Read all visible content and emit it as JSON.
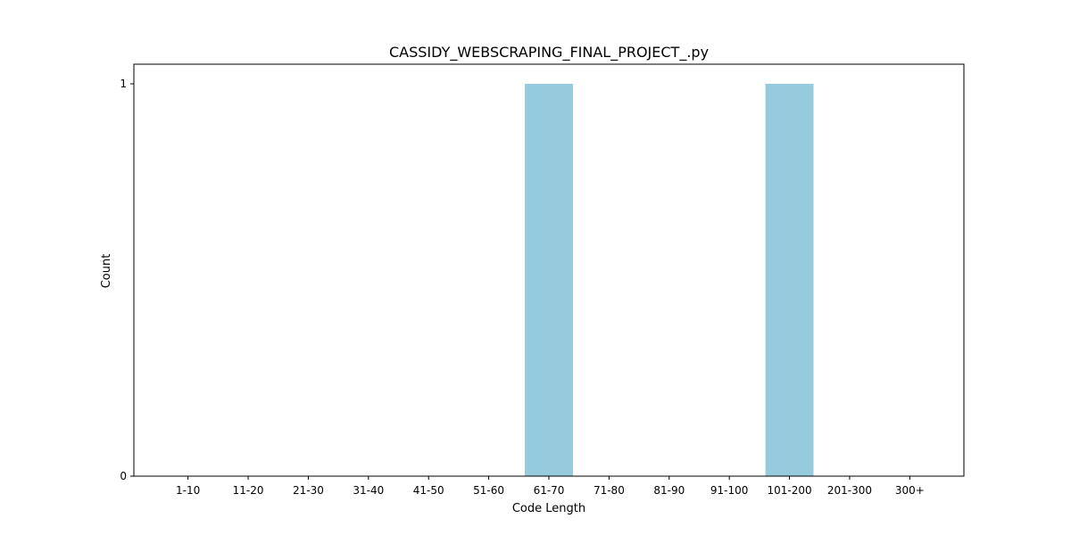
{
  "chart_data": {
    "type": "bar",
    "title": "CASSIDY_WEBSCRAPING_FINAL_PROJECT_.py",
    "xlabel": "Code Length",
    "ylabel": "Count",
    "categories": [
      "1-10",
      "11-20",
      "21-30",
      "31-40",
      "41-50",
      "51-60",
      "61-70",
      "71-80",
      "81-90",
      "91-100",
      "101-200",
      "201-300",
      "300+"
    ],
    "values": [
      0,
      0,
      0,
      0,
      0,
      0,
      1,
      0,
      0,
      0,
      1,
      0,
      0
    ],
    "ylim": [
      0,
      1.05
    ],
    "yticks": [
      0,
      1
    ],
    "bar_color": "#96cadd",
    "grid": false,
    "legend": "none"
  }
}
